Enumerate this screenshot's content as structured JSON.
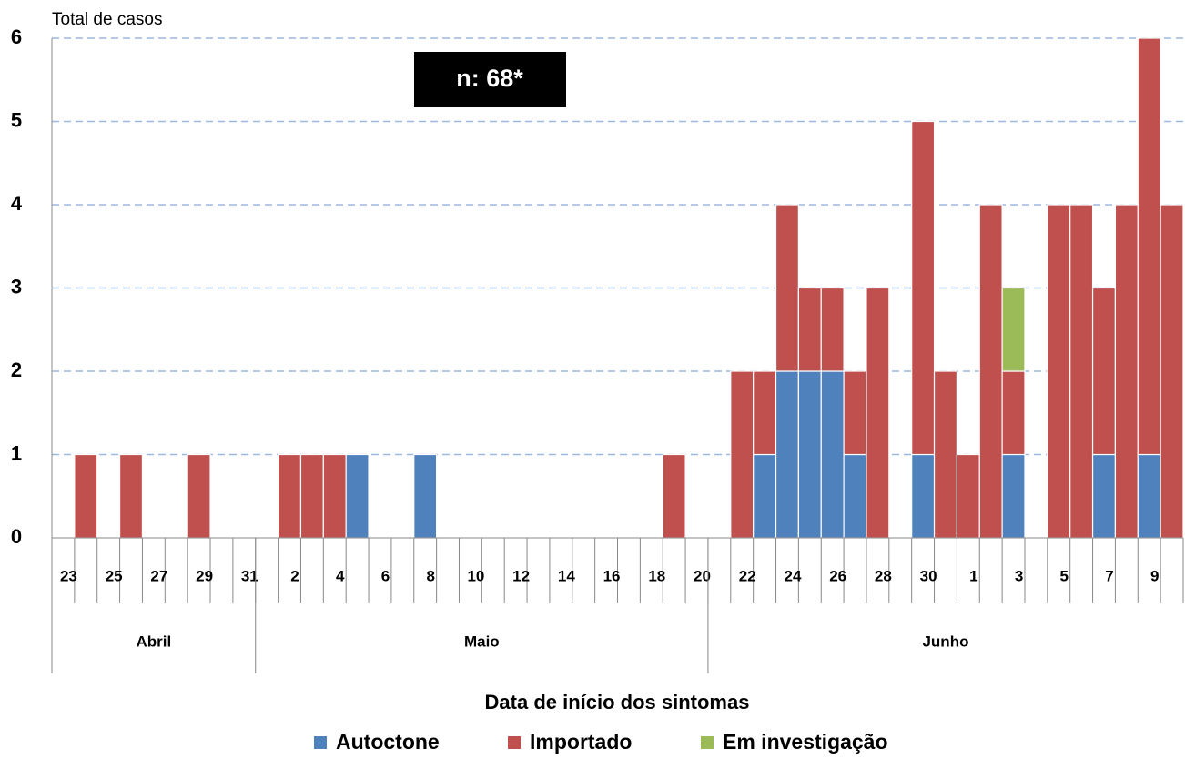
{
  "chart_data": {
    "type": "stacked-bar",
    "y_label": "Total de casos",
    "x_label": "Data de início dos sintomas",
    "annotation": "n: 68*",
    "categories": [
      "23",
      null,
      "25",
      null,
      "27",
      null,
      "29",
      null,
      "31",
      null,
      "2",
      null,
      "4",
      null,
      "6",
      null,
      "8",
      null,
      "10",
      null,
      "12",
      null,
      "14",
      null,
      "16",
      null,
      "18",
      null,
      "20",
      null,
      "22",
      null,
      "24",
      null,
      "26",
      null,
      "28",
      null,
      "30",
      null,
      "1",
      null,
      "3",
      null,
      "5",
      null,
      "7",
      null,
      "9",
      null
    ],
    "groups": [
      {
        "label": "Abril",
        "span": 9
      },
      {
        "label": "Maio",
        "span": 20
      },
      {
        "label": "Junho",
        "span": 21
      }
    ],
    "series": [
      {
        "name": "Autoctone",
        "color": "#4f81bd",
        "values": [
          0,
          0,
          0,
          0,
          0,
          0,
          0,
          0,
          0,
          0,
          0,
          0,
          0,
          1,
          0,
          0,
          1,
          0,
          0,
          0,
          0,
          0,
          0,
          0,
          0,
          0,
          0,
          0,
          0,
          0,
          0,
          1,
          2,
          2,
          2,
          1,
          0,
          0,
          1,
          0,
          0,
          0,
          1,
          0,
          0,
          0,
          1,
          0,
          1,
          0
        ]
      },
      {
        "name": "Importado",
        "color": "#c0504d",
        "values": [
          0,
          1,
          0,
          1,
          0,
          0,
          1,
          0,
          0,
          0,
          1,
          1,
          1,
          0,
          0,
          0,
          0,
          0,
          0,
          0,
          0,
          0,
          0,
          0,
          0,
          0,
          0,
          1,
          0,
          0,
          2,
          1,
          2,
          1,
          1,
          1,
          3,
          0,
          4,
          2,
          1,
          4,
          1,
          0,
          4,
          4,
          2,
          4,
          5,
          4
        ]
      },
      {
        "name": "Em investigação",
        "color": "#9bbb59",
        "values": [
          0,
          0,
          0,
          0,
          0,
          0,
          0,
          0,
          0,
          0,
          0,
          0,
          0,
          0,
          0,
          0,
          0,
          0,
          0,
          0,
          0,
          0,
          0,
          0,
          0,
          0,
          0,
          0,
          0,
          0,
          0,
          0,
          0,
          0,
          0,
          0,
          0,
          0,
          0,
          0,
          0,
          0,
          1,
          0,
          0,
          0,
          0,
          0,
          0,
          0
        ]
      }
    ],
    "ylim": [
      0,
      6
    ],
    "yticks": [
      0,
      1,
      2,
      3,
      4,
      5,
      6
    ],
    "grid": true
  }
}
